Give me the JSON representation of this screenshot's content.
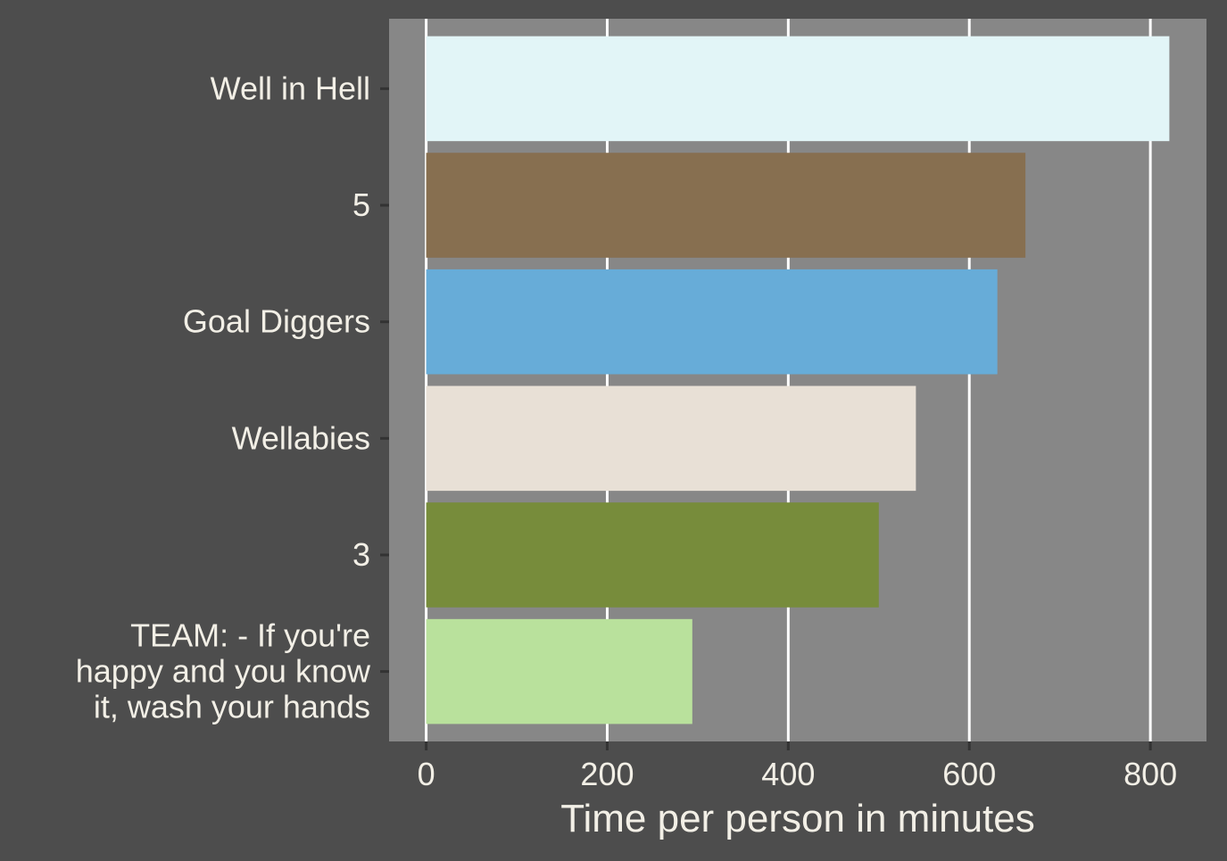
{
  "colors": {
    "page_background": "#4d4d4d",
    "panel_background": "#878787",
    "grid_line": "#ffffff",
    "tick_mark": "#333333",
    "text": "#f2efe6"
  },
  "chart_data": {
    "type": "bar",
    "orientation": "horizontal",
    "title": "",
    "xlabel": "Time per person in minutes",
    "ylabel": "",
    "xlim": [
      -41,
      862
    ],
    "x_ticks": [
      0,
      200,
      400,
      600,
      800
    ],
    "x_tick_labels": [
      "0",
      "200",
      "400",
      "600",
      "800"
    ],
    "grid": "vertical major lines only",
    "legend": "none",
    "categories": [
      "Well in Hell",
      "5",
      "Goal Diggers",
      "Wellabies",
      "3",
      "TEAM: - If you're happy and you know it, wash your hands"
    ],
    "category_label_lines": [
      [
        "Well in Hell"
      ],
      [
        "5"
      ],
      [
        "Goal Diggers"
      ],
      [
        "Wellabies"
      ],
      [
        "3"
      ],
      [
        "TEAM: - If you're",
        "happy and you know",
        "it, wash your hands"
      ]
    ],
    "values": [
      821,
      662,
      631,
      541,
      500,
      294
    ],
    "bar_colors": [
      "#e2f5f7",
      "#876f50",
      "#67acd8",
      "#e8e0d6",
      "#778c3b",
      "#b9e19c"
    ]
  }
}
